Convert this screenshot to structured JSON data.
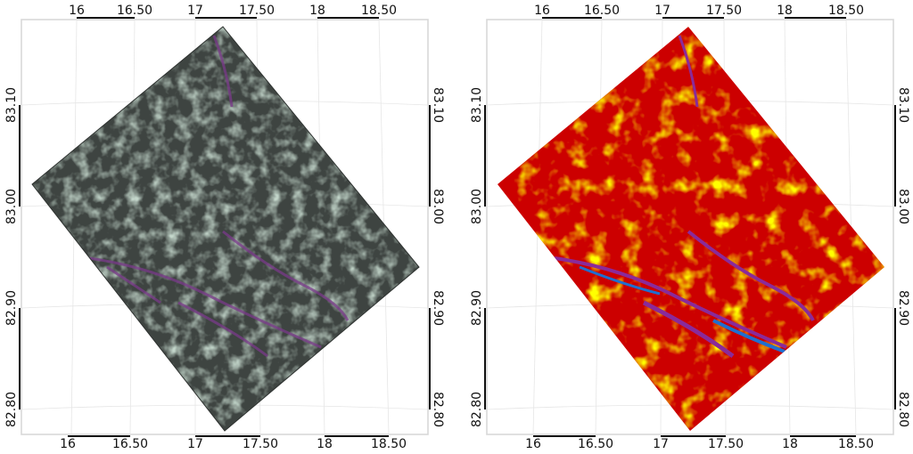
{
  "maps": [
    {
      "name": "satellite-image",
      "top_ticks": [
        "16",
        "16.50",
        "17",
        "17.50",
        "18",
        "18.50"
      ],
      "bottom_ticks": [
        "16",
        "16.50",
        "17",
        "17.50",
        "18",
        "18.50"
      ],
      "left_ticks": [
        "83.10",
        "83.00",
        "82.90",
        "82.80"
      ],
      "right_ticks": [
        "83.10",
        "83.00",
        "82.90",
        "82.80"
      ],
      "colors": {
        "base": "#3e4441",
        "ice": "#8fa898",
        "lead": "#7a3a8a",
        "dark": "#2a2d2c"
      }
    },
    {
      "name": "classified-map",
      "top_ticks": [
        "16",
        "16.50",
        "17",
        "17.50",
        "18",
        "18.50"
      ],
      "bottom_ticks": [
        "16",
        "16.50",
        "17",
        "17.50",
        "18",
        "18.50"
      ],
      "left_ticks": [
        "83.10",
        "83.00",
        "82.90",
        "82.80"
      ],
      "right_ticks": [
        "83.10",
        "83.00",
        "82.90",
        "82.80"
      ],
      "colors": {
        "base": "#cc0000",
        "thick_ice": "#ffff00",
        "thin_ice": "#8a2a9a",
        "water": "#1f6fd0"
      }
    }
  ]
}
